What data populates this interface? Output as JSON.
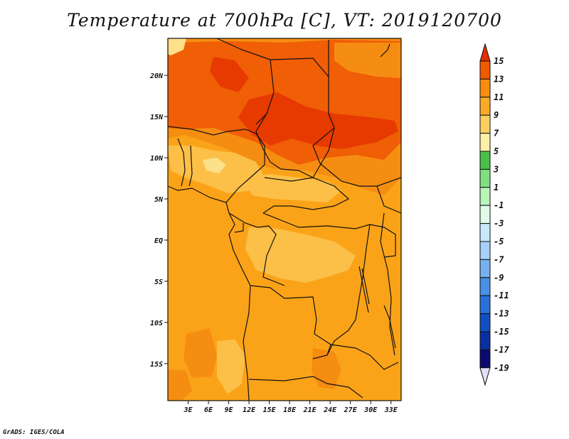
{
  "title": "Temperature at 700hPa [C], VT: 2019120700",
  "credit": "GrADS: IGES/COLA",
  "map": {
    "lat_labels": [
      "20N",
      "15N",
      "10N",
      "5N",
      "EQ",
      "5S",
      "10S",
      "15S"
    ],
    "lat_values": [
      20,
      15,
      10,
      5,
      0,
      -5,
      -10,
      -15
    ],
    "lon_labels": [
      "3E",
      "6E",
      "9E",
      "12E",
      "15E",
      "18E",
      "21E",
      "24E",
      "27E",
      "30E",
      "33E"
    ],
    "lon_values": [
      3,
      6,
      9,
      12,
      15,
      18,
      21,
      24,
      27,
      30,
      33
    ],
    "lat_range": [
      -19.5,
      24.5
    ],
    "lon_range": [
      0,
      34.5
    ]
  },
  "colorbar": {
    "labels": [
      "15",
      "13",
      "11",
      "9",
      "7",
      "5",
      "3",
      "1",
      "-1",
      "-3",
      "-5",
      "-7",
      "-9",
      "-11",
      "-13",
      "-15",
      "-17",
      "-19"
    ],
    "colors": [
      "#e02e00",
      "#f05a00",
      "#fa8c10",
      "#fbaa28",
      "#fcd060",
      "#fff0a8",
      "#48c048",
      "#80e080",
      "#b8f5b8",
      "#e0fae8",
      "#c8e8ff",
      "#a8d0fa",
      "#78b0f0",
      "#4890e8",
      "#2870d8",
      "#1050c0",
      "#0830a0",
      "#0a0a70",
      "#e0e0f8"
    ]
  },
  "fields": {
    "base_color": "#fba318",
    "warm_color": "#f58d12",
    "warmer_color": "#f05e06",
    "hot_color": "#e63a00",
    "cool_color": "#fcc048",
    "coolest_color": "#fde08a"
  }
}
